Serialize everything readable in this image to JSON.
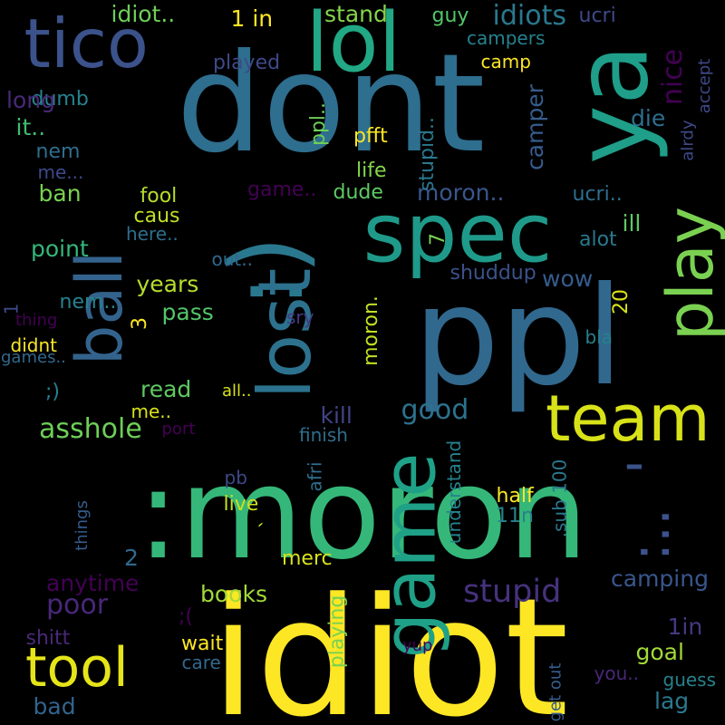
{
  "background": "#000000",
  "palette": [
    "#fde725",
    "#5ec962",
    "#21918c",
    "#3b528b",
    "#440154"
  ],
  "words": [
    {
      "text": "idiot",
      "color": "#fde725"
    },
    {
      "text": ":moron",
      "color": "#35b779"
    },
    {
      "text": "ppl",
      "color": "#31688e"
    },
    {
      "text": "dont",
      "color": "#2e6e8e"
    },
    {
      "text": ":)",
      "color": "#2a788e"
    },
    {
      "text": "ya",
      "color": "#1f9e89"
    },
    {
      "text": "lol",
      "color": "#22a884"
    },
    {
      "text": "tico",
      "color": "#3b528b"
    },
    {
      "text": "spec",
      "color": "#1f9a8a"
    },
    {
      "text": "lost",
      "color": "#2c728e"
    },
    {
      "text": "ball",
      "color": "#33638d"
    },
    {
      "text": "team",
      "color": "#d8e219"
    },
    {
      "text": "game",
      "color": "#1fa187"
    },
    {
      "text": "play",
      "color": "#7ad151"
    },
    {
      "text": "tool",
      "color": "#e5e419"
    },
    {
      "text": ":..",
      "color": "#3b528b"
    },
    {
      "text": "'",
      "color": "#3b528b"
    },
    {
      "text": "idiots",
      "color": "#2a788e"
    },
    {
      "text": "stupid",
      "color": "#46327e"
    },
    {
      "text": "asshole",
      "color": "#6ece58"
    },
    {
      "text": "poor",
      "color": "#482878"
    },
    {
      "text": "kill",
      "color": "#414487"
    },
    {
      "text": "good",
      "color": "#2c728e"
    },
    {
      "text": "nice",
      "color": "#440154"
    },
    {
      "text": "die",
      "color": "#2e6e8e"
    },
    {
      "text": "camper",
      "color": "#365c8d"
    },
    {
      "text": "moron..",
      "color": "#39568c"
    },
    {
      "text": "wow",
      "color": "#365c8d"
    },
    {
      "text": "ill",
      "color": "#5ec962"
    },
    {
      "text": "read",
      "color": "#5ec962"
    },
    {
      "text": "point",
      "color": "#35b779"
    },
    {
      "text": "years",
      "color": "#b5de2b"
    },
    {
      "text": "pass",
      "color": "#52c569"
    },
    {
      "text": "ban",
      "color": "#7ad151"
    },
    {
      "text": "nem",
      "color": "#2e6e8e"
    },
    {
      "text": "dumb",
      "color": "#26828e"
    },
    {
      "text": "it..",
      "color": "#3fbc73"
    },
    {
      "text": "long",
      "color": "#482878"
    },
    {
      "text": "played",
      "color": "#3e4989"
    },
    {
      "text": "idiot..",
      "color": "#6ece58"
    },
    {
      "text": "1 in",
      "color": "#fde725"
    },
    {
      "text": "stand",
      "color": "#84d44b"
    },
    {
      "text": "guy",
      "color": "#52c569"
    },
    {
      "text": "ucri",
      "color": "#3e4989"
    },
    {
      "text": "campers",
      "color": "#26828e"
    },
    {
      "text": "camp",
      "color": "#fde725"
    },
    {
      "text": "accept",
      "color": "#3e4989"
    },
    {
      "text": "alrdy",
      "color": "#3e4989"
    },
    {
      "text": "ppl..",
      "color": "#6ece58"
    },
    {
      "text": "pfft",
      "color": "#fde725"
    },
    {
      "text": "stupid..",
      "color": "#2a788e"
    },
    {
      "text": "life",
      "color": "#86d549"
    },
    {
      "text": "game..",
      "color": "#440154"
    },
    {
      "text": "dude",
      "color": "#5ec962"
    },
    {
      "text": "ucri..",
      "color": "#2e6e8e"
    },
    {
      "text": "fool",
      "color": "#b5de2b"
    },
    {
      "text": "caus",
      "color": "#c2df23"
    },
    {
      "text": "here..",
      "color": "#2e6e8e"
    },
    {
      "text": "7",
      "color": "#7ad151"
    },
    {
      "text": "alot",
      "color": "#2a788e"
    },
    {
      "text": "shuddup",
      "color": "#3b528b"
    },
    {
      "text": "me...",
      "color": "#3e4989"
    },
    {
      "text": "out..",
      "color": "#31688e"
    },
    {
      "text": "nem..",
      "color": "#26828e"
    },
    {
      "text": "3",
      "color": "#fde725"
    },
    {
      "text": "20",
      "color": "#d8e219"
    },
    {
      "text": "sry",
      "color": "#443983"
    },
    {
      "text": "moron.",
      "color": "#c2df23"
    },
    {
      "text": "bla",
      "color": "#26828e"
    },
    {
      "text": "1",
      "color": "#3e4989"
    },
    {
      "text": "thing",
      "color": "#440154"
    },
    {
      "text": "didnt",
      "color": "#fde725"
    },
    {
      "text": "games..",
      "color": "#31688e"
    },
    {
      "text": ";)",
      "color": "#26828e"
    },
    {
      "text": "all..",
      "color": "#d8e219"
    },
    {
      "text": "me..",
      "color": "#d8e219"
    },
    {
      "text": "port",
      "color": "#440154"
    },
    {
      "text": "finish",
      "color": "#2e6e8e"
    },
    {
      "text": "understand",
      "color": "#26828e"
    },
    {
      "text": ".sub 100",
      "color": "#2a788e"
    },
    {
      "text": "afri",
      "color": "#2e6e8e"
    },
    {
      "text": "pb",
      "color": "#3e4989"
    },
    {
      "text": "live",
      "color": "#c8e020"
    },
    {
      "text": "`",
      "color": "#c8e020"
    },
    {
      "text": "things",
      "color": "#365c8d"
    },
    {
      "text": "half",
      "color": "#fde725"
    },
    {
      "text": "11n",
      "color": "#26828e"
    },
    {
      "text": "2",
      "color": "#31688e"
    },
    {
      "text": "merc",
      "color": "#d8e219"
    },
    {
      "text": "anytime",
      "color": "#440154"
    },
    {
      "text": "books",
      "color": "#a2da37"
    },
    {
      "text": "camping",
      "color": "#39568c"
    },
    {
      "text": "1in",
      "color": "#443983"
    },
    {
      "text": ";(",
      "color": "#440154"
    },
    {
      "text": "playing",
      "color": "#7ad151"
    },
    {
      "text": "goal",
      "color": "#a2da37"
    },
    {
      "text": "shitt",
      "color": "#482878"
    },
    {
      "text": "wait",
      "color": "#fde725"
    },
    {
      "text": "care",
      "color": "#31688e"
    },
    {
      "text": "yup",
      "color": "#440154"
    },
    {
      "text": "get out",
      "color": "#365c8d"
    },
    {
      "text": "you..",
      "color": "#482878"
    },
    {
      "text": "guess",
      "color": "#26828e"
    },
    {
      "text": "lag",
      "color": "#2a788e"
    },
    {
      "text": "bad",
      "color": "#33638d"
    }
  ]
}
